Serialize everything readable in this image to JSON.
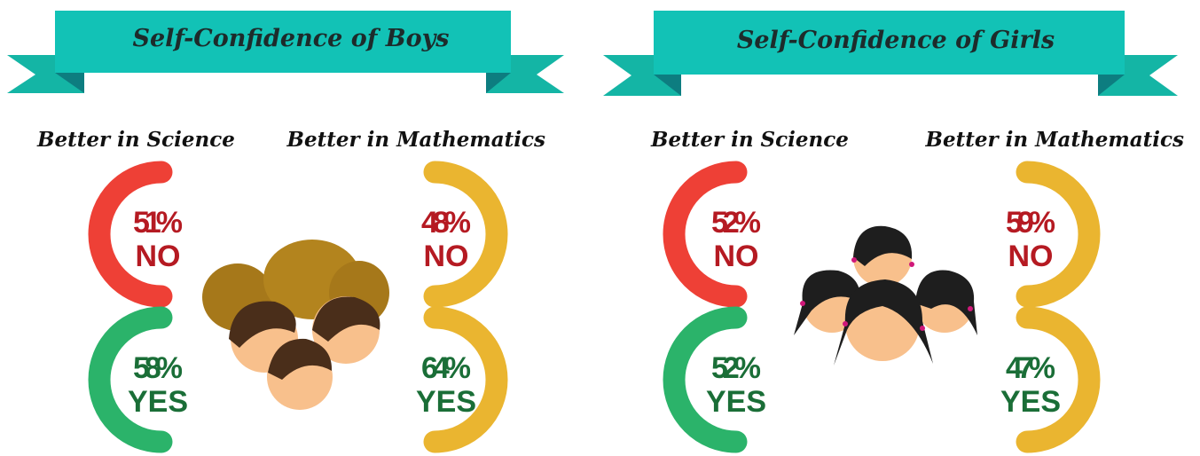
{
  "panels": [
    {
      "title": "Self-Confidence of Boys",
      "groups": [
        {
          "label": "Better in Science",
          "items": [
            {
              "value": "51%",
              "answer": "NO"
            },
            {
              "value": "58%",
              "answer": "YES"
            }
          ]
        },
        {
          "label": "Better in Mathematics",
          "items": [
            {
              "value": "48%",
              "answer": "NO"
            },
            {
              "value": "64%",
              "answer": "YES"
            }
          ]
        }
      ]
    },
    {
      "title": "Self-Confidence of Girls",
      "groups": [
        {
          "label": "Better in Science",
          "items": [
            {
              "value": "52%",
              "answer": "NO"
            },
            {
              "value": "52%",
              "answer": "YES"
            }
          ]
        },
        {
          "label": "Better in Mathematics",
          "items": [
            {
              "value": "59%",
              "answer": "NO"
            },
            {
              "value": "47%",
              "answer": "YES"
            }
          ]
        }
      ]
    }
  ]
}
